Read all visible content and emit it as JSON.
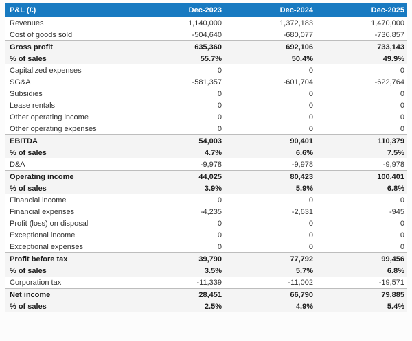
{
  "table": {
    "header": {
      "label": "P&L (£)",
      "columns": [
        "Dec-2023",
        "Dec-2024",
        "Dec-2025"
      ]
    },
    "rows": [
      {
        "label": "Revenues",
        "values": [
          "1,140,000",
          "1,372,183",
          "1,470,000"
        ],
        "style": "normal"
      },
      {
        "label": "Cost of goods sold",
        "values": [
          "-504,640",
          "-680,077",
          "-736,857"
        ],
        "style": "normal"
      },
      {
        "label": "Gross profit",
        "values": [
          "635,360",
          "692,106",
          "733,143"
        ],
        "style": "subtotal"
      },
      {
        "label": "% of sales",
        "values": [
          "55.7%",
          "50.4%",
          "49.9%"
        ],
        "style": "percent"
      },
      {
        "label": "Capitalized expenses",
        "values": [
          "0",
          "0",
          "0"
        ],
        "style": "normal"
      },
      {
        "label": "SG&A",
        "values": [
          "-581,357",
          "-601,704",
          "-622,764"
        ],
        "style": "normal"
      },
      {
        "label": "Subsidies",
        "values": [
          "0",
          "0",
          "0"
        ],
        "style": "normal"
      },
      {
        "label": "Lease rentals",
        "values": [
          "0",
          "0",
          "0"
        ],
        "style": "normal"
      },
      {
        "label": "Other operating income",
        "values": [
          "0",
          "0",
          "0"
        ],
        "style": "normal"
      },
      {
        "label": "Other operating expenses",
        "values": [
          "0",
          "0",
          "0"
        ],
        "style": "normal"
      },
      {
        "label": "EBITDA",
        "values": [
          "54,003",
          "90,401",
          "110,379"
        ],
        "style": "subtotal"
      },
      {
        "label": "% of sales",
        "values": [
          "4.7%",
          "6.6%",
          "7.5%"
        ],
        "style": "percent"
      },
      {
        "label": "D&A",
        "values": [
          "-9,978",
          "-9,978",
          "-9,978"
        ],
        "style": "normal"
      },
      {
        "label": "Operating income",
        "values": [
          "44,025",
          "80,423",
          "100,401"
        ],
        "style": "subtotal"
      },
      {
        "label": "% of sales",
        "values": [
          "3.9%",
          "5.9%",
          "6.8%"
        ],
        "style": "percent"
      },
      {
        "label": "Financial income",
        "values": [
          "0",
          "0",
          "0"
        ],
        "style": "normal"
      },
      {
        "label": "Financial expenses",
        "values": [
          "-4,235",
          "-2,631",
          "-945"
        ],
        "style": "normal"
      },
      {
        "label": "Profit (loss) on disposal",
        "values": [
          "0",
          "0",
          "0"
        ],
        "style": "normal"
      },
      {
        "label": "Exceptional income",
        "values": [
          "0",
          "0",
          "0"
        ],
        "style": "normal"
      },
      {
        "label": "Exceptional expenses",
        "values": [
          "0",
          "0",
          "0"
        ],
        "style": "normal"
      },
      {
        "label": "Profit before tax",
        "values": [
          "39,790",
          "77,792",
          "99,456"
        ],
        "style": "subtotal"
      },
      {
        "label": "% of sales",
        "values": [
          "3.5%",
          "5.7%",
          "6.8%"
        ],
        "style": "percent"
      },
      {
        "label": "Corporation tax",
        "values": [
          "-11,339",
          "-11,002",
          "-19,571"
        ],
        "style": "normal"
      },
      {
        "label": "Net income",
        "values": [
          "28,451",
          "66,790",
          "79,885"
        ],
        "style": "subtotal"
      },
      {
        "label": "% of sales",
        "values": [
          "2.5%",
          "4.9%",
          "5.4%"
        ],
        "style": "percent"
      }
    ],
    "colors": {
      "header_bg": "#187ac1",
      "header_text": "#ffffff",
      "subtotal_bg": "#f4f4f4"
    }
  },
  "chart_data": {
    "type": "table",
    "title": "P&L (£)",
    "columns": [
      "Dec-2023",
      "Dec-2024",
      "Dec-2025"
    ],
    "rows": [
      {
        "label": "Revenues",
        "values": [
          1140000,
          1372183,
          1470000
        ]
      },
      {
        "label": "Cost of goods sold",
        "values": [
          -504640,
          -680077,
          -736857
        ]
      },
      {
        "label": "Gross profit",
        "values": [
          635360,
          692106,
          733143
        ]
      },
      {
        "label": "% of sales",
        "values": [
          55.7,
          50.4,
          49.9
        ],
        "unit": "%"
      },
      {
        "label": "Capitalized expenses",
        "values": [
          0,
          0,
          0
        ]
      },
      {
        "label": "SG&A",
        "values": [
          -581357,
          -601704,
          -622764
        ]
      },
      {
        "label": "Subsidies",
        "values": [
          0,
          0,
          0
        ]
      },
      {
        "label": "Lease rentals",
        "values": [
          0,
          0,
          0
        ]
      },
      {
        "label": "Other operating income",
        "values": [
          0,
          0,
          0
        ]
      },
      {
        "label": "Other operating expenses",
        "values": [
          0,
          0,
          0
        ]
      },
      {
        "label": "EBITDA",
        "values": [
          54003,
          90401,
          110379
        ]
      },
      {
        "label": "% of sales",
        "values": [
          4.7,
          6.6,
          7.5
        ],
        "unit": "%"
      },
      {
        "label": "D&A",
        "values": [
          -9978,
          -9978,
          -9978
        ]
      },
      {
        "label": "Operating income",
        "values": [
          44025,
          80423,
          100401
        ]
      },
      {
        "label": "% of sales",
        "values": [
          3.9,
          5.9,
          6.8
        ],
        "unit": "%"
      },
      {
        "label": "Financial income",
        "values": [
          0,
          0,
          0
        ]
      },
      {
        "label": "Financial expenses",
        "values": [
          -4235,
          -2631,
          -945
        ]
      },
      {
        "label": "Profit (loss) on disposal",
        "values": [
          0,
          0,
          0
        ]
      },
      {
        "label": "Exceptional income",
        "values": [
          0,
          0,
          0
        ]
      },
      {
        "label": "Exceptional expenses",
        "values": [
          0,
          0,
          0
        ]
      },
      {
        "label": "Profit before tax",
        "values": [
          39790,
          77792,
          99456
        ]
      },
      {
        "label": "% of sales",
        "values": [
          3.5,
          5.7,
          6.8
        ],
        "unit": "%"
      },
      {
        "label": "Corporation tax",
        "values": [
          -11339,
          -11002,
          -19571
        ]
      },
      {
        "label": "Net income",
        "values": [
          28451,
          66790,
          79885
        ]
      },
      {
        "label": "% of sales",
        "values": [
          2.5,
          4.9,
          5.4
        ],
        "unit": "%"
      }
    ]
  }
}
